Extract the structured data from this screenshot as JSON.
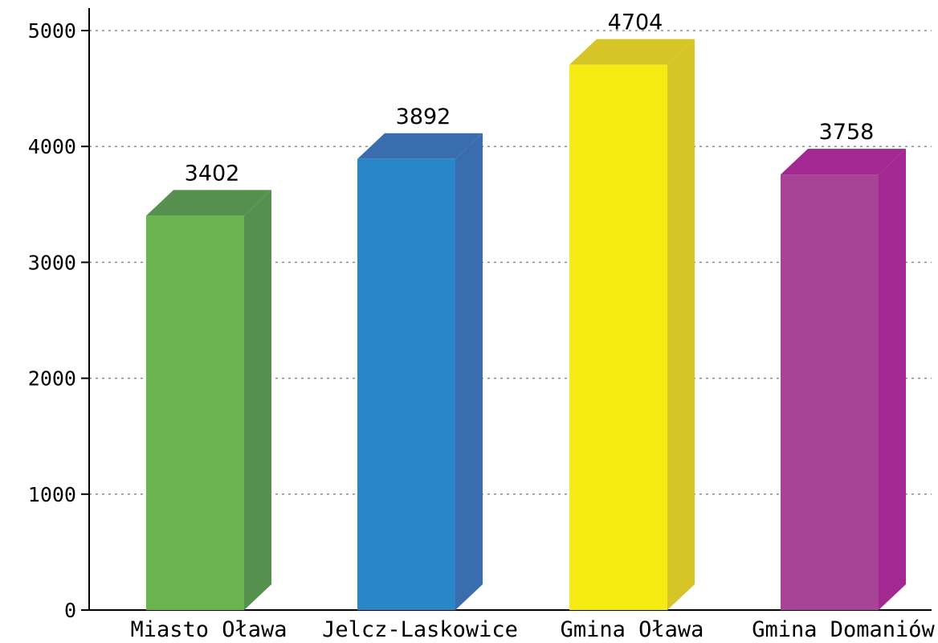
{
  "chart_data": {
    "type": "bar",
    "style": "3d",
    "categories": [
      "Miasto Oława",
      "Jelcz-Laskowice",
      "Gmina Oława",
      "Gmina Domaniów"
    ],
    "values": [
      3402,
      3892,
      4704,
      3758
    ],
    "colors": [
      {
        "front": "#6ab550",
        "side": "#56904f"
      },
      {
        "front": "#2986c7",
        "side": "#3a6dae"
      },
      {
        "front": "#f6ea13",
        "side": "#d6c527"
      },
      {
        "front": "#a84397",
        "side": "#a32891"
      }
    ],
    "ylim": [
      0,
      5000
    ],
    "yticks": [
      0,
      1000,
      2000,
      3000,
      4000,
      5000
    ],
    "grid": true,
    "legend": "none"
  }
}
